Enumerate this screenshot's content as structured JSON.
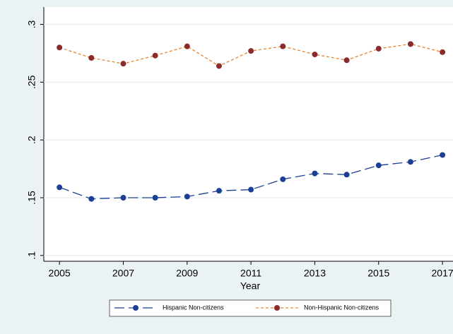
{
  "chart_data": {
    "type": "line",
    "x_label": "Year",
    "x": [
      2005,
      2006,
      2007,
      2008,
      2009,
      2010,
      2011,
      2012,
      2013,
      2014,
      2015,
      2016,
      2017
    ],
    "series": [
      {
        "name": "Hispanic Non-citizens",
        "color": "#1a3f95",
        "marker_color": "#1a3f95",
        "dash": "14,6",
        "values": [
          0.159,
          0.149,
          0.15,
          0.15,
          0.151,
          0.156,
          0.157,
          0.166,
          0.171,
          0.17,
          0.178,
          0.181,
          0.187
        ]
      },
      {
        "name": "Non-Hispanic Non-citizens",
        "color": "#e8822a",
        "marker_color": "#8b2b2b",
        "dash": "4,3",
        "values": [
          0.28,
          0.271,
          0.266,
          0.273,
          0.281,
          0.264,
          0.277,
          0.281,
          0.274,
          0.269,
          0.279,
          0.283,
          0.276
        ]
      }
    ],
    "xlim": [
      2004.51,
      2017.33
    ],
    "ylim": [
      0.095,
      0.315
    ],
    "xticks": [
      2005,
      2007,
      2009,
      2011,
      2013,
      2015,
      2017
    ],
    "yticks": [
      {
        "value": 0.1,
        "label": ".1"
      },
      {
        "value": 0.15,
        "label": ".15"
      },
      {
        "value": 0.2,
        "label": ".2"
      },
      {
        "value": 0.25,
        "label": ".25"
      },
      {
        "value": 0.3,
        "label": ".3"
      }
    ],
    "grid": true
  }
}
